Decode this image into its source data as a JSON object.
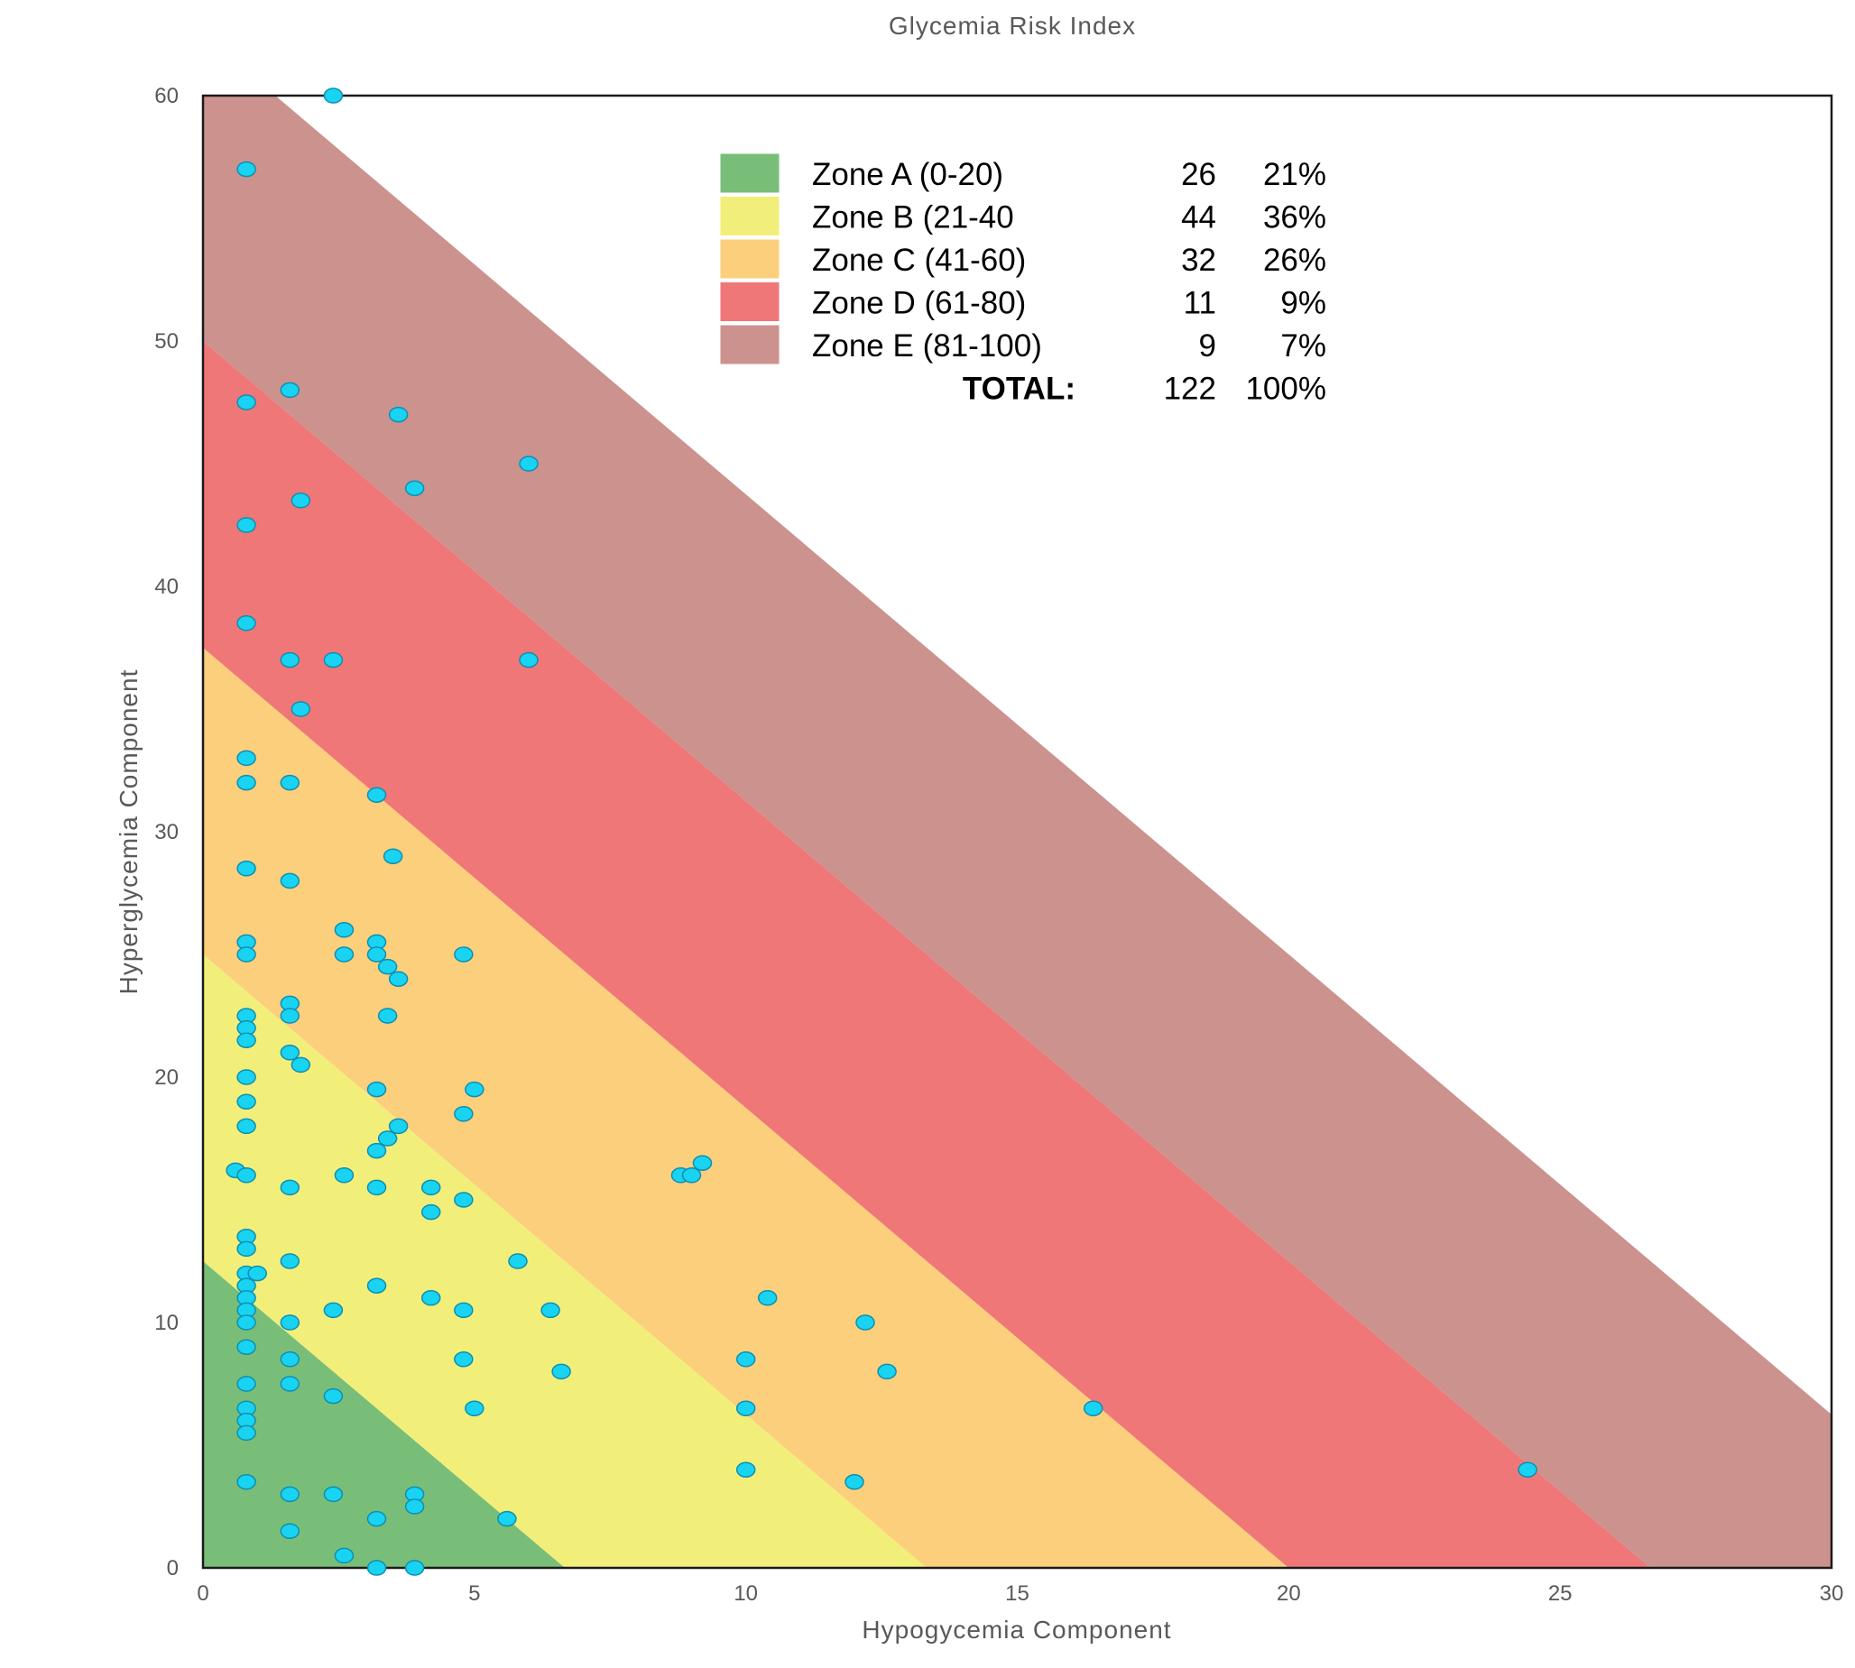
{
  "chart_data": {
    "type": "scatter",
    "title": "Glycemia Risk Index",
    "xlabel": "Hypogycemia Component",
    "ylabel": "Hyperglycemia Component",
    "xlim": [
      0,
      30
    ],
    "ylim": [
      0,
      60
    ],
    "x_ticks": [
      "0",
      "5",
      "10",
      "15",
      "20",
      "25",
      "30"
    ],
    "y_ticks": [
      "0",
      "10",
      "20",
      "30",
      "40",
      "50",
      "60"
    ],
    "grid": false,
    "legend_placement": "top-center",
    "zones": [
      {
        "name": "Zone A (0-20)",
        "count": "26",
        "pct": "21%",
        "color": "#79BE78",
        "gri_min": 0,
        "gri_max": 20
      },
      {
        "name": "Zone B (21-40",
        "count": "44",
        "pct": "36%",
        "color": "#F1EF7A",
        "gri_min": 20,
        "gri_max": 40
      },
      {
        "name": "Zone C (41-60)",
        "count": "32",
        "pct": "26%",
        "color": "#FCCF7C",
        "gri_min": 40,
        "gri_max": 60
      },
      {
        "name": "Zone D (61-80)",
        "count": "11",
        "pct": "9%",
        "color": "#EF7778",
        "gri_min": 60,
        "gri_max": 80
      },
      {
        "name": "Zone E (81-100)",
        "count": "9",
        "pct": "7%",
        "color": "#CC928E",
        "gri_min": 80,
        "gri_max": 100
      }
    ],
    "total": {
      "label": "TOTAL:",
      "count": "122",
      "pct": "100%"
    },
    "point_color": "#19D3F3",
    "points": [
      [
        2.4,
        60
      ],
      [
        0.8,
        57
      ],
      [
        0.8,
        47.5
      ],
      [
        1.6,
        48
      ],
      [
        3.6,
        47
      ],
      [
        6.0,
        45
      ],
      [
        3.9,
        44
      ],
      [
        1.8,
        43.5
      ],
      [
        0.8,
        42.5
      ],
      [
        0.8,
        38.5
      ],
      [
        1.6,
        37
      ],
      [
        2.4,
        37
      ],
      [
        6.0,
        37
      ],
      [
        1.8,
        35
      ],
      [
        0.8,
        33
      ],
      [
        0.8,
        32
      ],
      [
        1.6,
        32
      ],
      [
        3.2,
        31.5
      ],
      [
        3.5,
        29
      ],
      [
        0.8,
        28.5
      ],
      [
        1.6,
        28
      ],
      [
        2.6,
        26
      ],
      [
        0.8,
        25.5
      ],
      [
        3.2,
        25.5
      ],
      [
        0.8,
        25
      ],
      [
        2.6,
        25
      ],
      [
        3.2,
        25
      ],
      [
        4.8,
        25
      ],
      [
        3.4,
        24.5
      ],
      [
        3.6,
        24
      ],
      [
        1.6,
        23
      ],
      [
        0.8,
        22.5
      ],
      [
        1.6,
        22.5
      ],
      [
        3.4,
        22.5
      ],
      [
        0.8,
        22
      ],
      [
        0.8,
        21.5
      ],
      [
        1.6,
        21
      ],
      [
        1.8,
        20.5
      ],
      [
        0.8,
        20
      ],
      [
        3.2,
        19.5
      ],
      [
        5.0,
        19.5
      ],
      [
        0.8,
        19
      ],
      [
        4.8,
        18.5
      ],
      [
        0.8,
        18
      ],
      [
        3.6,
        18
      ],
      [
        3.4,
        17.5
      ],
      [
        3.2,
        17
      ],
      [
        9.2,
        16.5
      ],
      [
        0.6,
        16.2
      ],
      [
        0.8,
        16
      ],
      [
        2.6,
        16
      ],
      [
        8.8,
        16
      ],
      [
        9.0,
        16
      ],
      [
        1.6,
        15.5
      ],
      [
        3.2,
        15.5
      ],
      [
        4.2,
        15.5
      ],
      [
        4.8,
        15
      ],
      [
        4.2,
        14.5
      ],
      [
        0.8,
        13.5
      ],
      [
        0.8,
        13
      ],
      [
        1.6,
        12.5
      ],
      [
        5.8,
        12.5
      ],
      [
        0.8,
        12
      ],
      [
        1.0,
        12
      ],
      [
        0.8,
        11.5
      ],
      [
        3.2,
        11.5
      ],
      [
        0.8,
        11
      ],
      [
        4.2,
        11
      ],
      [
        10.4,
        11
      ],
      [
        0.8,
        10.5
      ],
      [
        2.4,
        10.5
      ],
      [
        4.8,
        10.5
      ],
      [
        6.4,
        10.5
      ],
      [
        0.8,
        10
      ],
      [
        1.6,
        10
      ],
      [
        12.2,
        10
      ],
      [
        0.8,
        9
      ],
      [
        1.6,
        8.5
      ],
      [
        4.8,
        8.5
      ],
      [
        10.0,
        8.5
      ],
      [
        6.6,
        8
      ],
      [
        12.6,
        8
      ],
      [
        0.8,
        7.5
      ],
      [
        1.6,
        7.5
      ],
      [
        2.4,
        7
      ],
      [
        0.8,
        6.5
      ],
      [
        5.0,
        6.5
      ],
      [
        10.0,
        6.5
      ],
      [
        16.4,
        6.5
      ],
      [
        0.8,
        6
      ],
      [
        0.8,
        5.5
      ],
      [
        10.0,
        4
      ],
      [
        24.4,
        4
      ],
      [
        0.8,
        3.5
      ],
      [
        12.0,
        3.5
      ],
      [
        1.6,
        3
      ],
      [
        2.4,
        3
      ],
      [
        3.9,
        3
      ],
      [
        3.9,
        2.5
      ],
      [
        3.2,
        2
      ],
      [
        5.6,
        2
      ],
      [
        1.6,
        1.5
      ],
      [
        2.6,
        0.5
      ],
      [
        3.2,
        0
      ],
      [
        3.9,
        0
      ]
    ]
  }
}
